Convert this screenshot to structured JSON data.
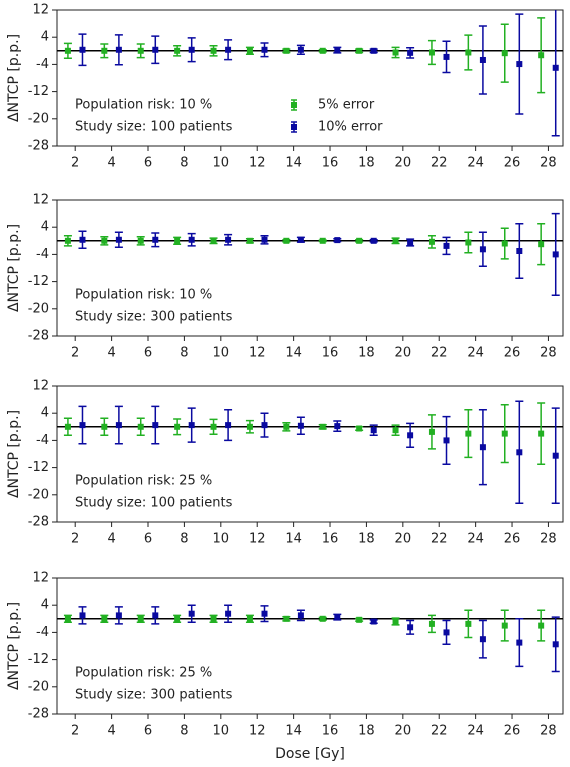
{
  "chart_data": [
    {
      "type": "errorbar",
      "ylabel": "ΔNTCP  [p.p.]",
      "annotations": [
        "Population risk: 10 %",
        "Study size: 100 patients"
      ],
      "xlim": [
        1,
        28.8
      ],
      "xticks": [
        2,
        4,
        6,
        8,
        10,
        12,
        14,
        16,
        18,
        20,
        22,
        24,
        26,
        28
      ],
      "ylim": [
        -28,
        12
      ],
      "yticks": [
        12,
        4,
        -4,
        -12,
        -20,
        -28
      ],
      "hline": 0,
      "series": [
        {
          "name": "5% error",
          "color": "#22b022",
          "x": [
            1.6,
            3.6,
            5.6,
            7.6,
            9.6,
            11.6,
            13.6,
            15.6,
            17.6,
            19.6,
            21.6,
            23.6,
            25.6,
            27.6
          ],
          "values": [
            0,
            0,
            0,
            0,
            0,
            0,
            0,
            0,
            0,
            -0.5,
            -0.5,
            -0.5,
            -0.7,
            -1.3
          ],
          "errors": [
            2.2,
            2,
            2,
            1.5,
            1.5,
            1,
            0.5,
            0.3,
            0.5,
            1.5,
            3.5,
            5.1,
            8.5,
            11
          ]
        },
        {
          "name": "10% error",
          "color": "#0a0aa0",
          "x": [
            2.4,
            4.4,
            6.4,
            8.4,
            10.4,
            12.4,
            14.4,
            16.4,
            18.4,
            20.4,
            22.4,
            24.4,
            26.4,
            28.4
          ],
          "values": [
            0.3,
            0.3,
            0.3,
            0.3,
            0.3,
            0.3,
            0.3,
            0.2,
            0,
            -0.6,
            -1.8,
            -2.7,
            -3.9,
            -5
          ],
          "errors": [
            4.6,
            4.4,
            4,
            3.5,
            2.9,
            2,
            1.3,
            0.8,
            0.5,
            1.5,
            4.6,
            10,
            14.7,
            20
          ]
        }
      ]
    },
    {
      "type": "errorbar",
      "ylabel": "ΔNTCP  [p.p.]",
      "annotations": [
        "Population risk: 10 %",
        "Study size: 300 patients"
      ],
      "xlim": [
        1,
        28.8
      ],
      "xticks": [
        2,
        4,
        6,
        8,
        10,
        12,
        14,
        16,
        18,
        20,
        22,
        24,
        26,
        28
      ],
      "ylim": [
        -28,
        12
      ],
      "yticks": [
        12,
        4,
        -4,
        -12,
        -20,
        -28
      ],
      "hline": 0,
      "series": [
        {
          "color": "#22b022",
          "x": [
            1.6,
            3.6,
            5.6,
            7.6,
            9.6,
            11.6,
            13.6,
            15.6,
            17.6,
            19.6,
            21.6,
            23.6,
            25.6,
            27.6
          ],
          "values": [
            0,
            0,
            0,
            0,
            0,
            0,
            0,
            0,
            0,
            0,
            -0.3,
            -0.5,
            -0.8,
            -1
          ],
          "errors": [
            1.5,
            1.2,
            1.2,
            1,
            0.8,
            0.6,
            0.3,
            0.2,
            0.3,
            0.8,
            1.8,
            3,
            4.5,
            6
          ]
        },
        {
          "color": "#0a0aa0",
          "x": [
            2.4,
            4.4,
            6.4,
            8.4,
            10.4,
            12.4,
            14.4,
            16.4,
            18.4,
            20.4,
            22.4,
            24.4,
            26.4,
            28.4
          ],
          "values": [
            0.3,
            0.3,
            0.3,
            0.3,
            0.3,
            0.3,
            0.3,
            0.2,
            0,
            -0.5,
            -1.5,
            -2.5,
            -3,
            -4
          ],
          "errors": [
            2.5,
            2.2,
            2,
            1.8,
            1.5,
            1.2,
            0.7,
            0.4,
            0.3,
            1,
            2.5,
            5,
            8,
            12
          ]
        }
      ]
    },
    {
      "type": "errorbar",
      "ylabel": "ΔNTCP  [p.p.]",
      "annotations": [
        "Population risk: 25 %",
        "Study size: 100 patients"
      ],
      "xlim": [
        1,
        28.8
      ],
      "xticks": [
        2,
        4,
        6,
        8,
        10,
        12,
        14,
        16,
        18,
        20,
        22,
        24,
        26,
        28
      ],
      "ylim": [
        -28,
        12
      ],
      "yticks": [
        12,
        4,
        -4,
        -12,
        -20,
        -28
      ],
      "hline": 0,
      "series": [
        {
          "color": "#22b022",
          "x": [
            1.6,
            3.6,
            5.6,
            7.6,
            9.6,
            11.6,
            13.6,
            15.6,
            17.6,
            19.6,
            21.6,
            23.6,
            25.6,
            27.6
          ],
          "values": [
            0,
            0,
            0,
            0,
            0,
            0,
            0,
            0,
            -0.5,
            -1,
            -1.5,
            -2,
            -2,
            -2
          ],
          "errors": [
            2.5,
            2.5,
            2.5,
            2.3,
            2.2,
            1.8,
            1.2,
            0.6,
            0.5,
            1.5,
            5,
            7,
            8.5,
            9
          ]
        },
        {
          "color": "#0a0aa0",
          "x": [
            2.4,
            4.4,
            6.4,
            8.4,
            10.4,
            12.4,
            14.4,
            16.4,
            18.4,
            20.4,
            22.4,
            24.4,
            26.4,
            28.4
          ],
          "values": [
            0.5,
            0.5,
            0.5,
            0.5,
            0.5,
            0.5,
            0.3,
            0.2,
            -1,
            -2.5,
            -4,
            -6,
            -7.5,
            -8.5
          ],
          "errors": [
            5.5,
            5.5,
            5.5,
            5,
            4.5,
            3.5,
            2.5,
            1.5,
            1.5,
            3.5,
            7,
            11,
            15,
            14
          ]
        }
      ]
    },
    {
      "type": "errorbar",
      "ylabel": "ΔNTCP  [p.p.]",
      "xlabel": "Dose [Gy]",
      "annotations": [
        "Population risk: 25 %",
        "Study size: 300 patients"
      ],
      "xlim": [
        1,
        28.8
      ],
      "xticks": [
        2,
        4,
        6,
        8,
        10,
        12,
        14,
        16,
        18,
        20,
        22,
        24,
        26,
        28
      ],
      "ylim": [
        -28,
        12
      ],
      "yticks": [
        12,
        4,
        -4,
        -12,
        -20,
        -28
      ],
      "hline": 0,
      "series": [
        {
          "color": "#22b022",
          "x": [
            1.6,
            3.6,
            5.6,
            7.6,
            9.6,
            11.6,
            13.6,
            15.6,
            17.6,
            19.6,
            21.6,
            23.6,
            25.6,
            27.6
          ],
          "values": [
            0,
            0,
            0,
            0,
            0,
            0,
            0,
            0,
            -0.3,
            -0.8,
            -1.5,
            -1.5,
            -2,
            -2
          ],
          "errors": [
            1,
            1,
            1,
            1,
            1,
            1,
            0.6,
            0.4,
            0.4,
            1,
            2.5,
            4,
            4.5,
            4.5
          ]
        },
        {
          "color": "#0a0aa0",
          "x": [
            2.4,
            4.4,
            6.4,
            8.4,
            10.4,
            12.4,
            14.4,
            16.4,
            18.4,
            20.4,
            22.4,
            24.4,
            26.4,
            28.4
          ],
          "values": [
            1,
            1,
            1,
            1.5,
            1.5,
            1.5,
            1,
            0.5,
            -0.8,
            -2.5,
            -4,
            -6,
            -7,
            -7.5
          ],
          "errors": [
            2.5,
            2.5,
            2.5,
            2.5,
            2.5,
            2.3,
            1.5,
            0.8,
            0.5,
            2,
            3.5,
            5.5,
            7,
            8
          ]
        }
      ]
    }
  ]
}
